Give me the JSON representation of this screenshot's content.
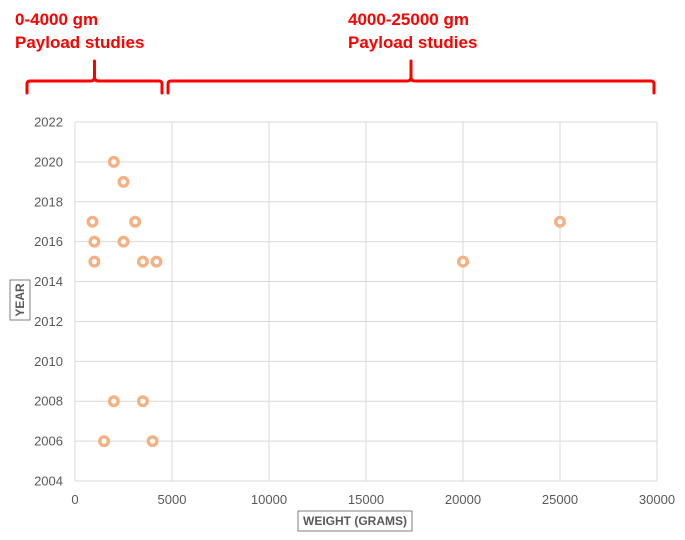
{
  "chart_data": {
    "type": "scatter",
    "title": "",
    "xlabel": "WEIGHT (GRAMS)",
    "ylabel": "YEAR",
    "xlim": [
      0,
      30000
    ],
    "ylim": [
      2004,
      2022
    ],
    "xticks": [
      0,
      5000,
      10000,
      15000,
      20000,
      25000,
      30000
    ],
    "yticks": [
      2004,
      2006,
      2008,
      2010,
      2012,
      2014,
      2016,
      2018,
      2020,
      2022
    ],
    "grid": true,
    "legend": "none",
    "series": [
      {
        "marker_color": "#f4b183",
        "points": [
          {
            "x": 2000,
            "y": 2020
          },
          {
            "x": 2500,
            "y": 2019
          },
          {
            "x": 900,
            "y": 2017
          },
          {
            "x": 3100,
            "y": 2017
          },
          {
            "x": 1000,
            "y": 2016
          },
          {
            "x": 2500,
            "y": 2016
          },
          {
            "x": 1000,
            "y": 2015
          },
          {
            "x": 3500,
            "y": 2015
          },
          {
            "x": 4200,
            "y": 2015
          },
          {
            "x": 2000,
            "y": 2008
          },
          {
            "x": 3500,
            "y": 2008
          },
          {
            "x": 1500,
            "y": 2006
          },
          {
            "x": 4000,
            "y": 2006
          },
          {
            "x": 20000,
            "y": 2015
          },
          {
            "x": 25000,
            "y": 2017
          }
        ]
      }
    ],
    "annotations": [
      {
        "line1": "0-4000 gm",
        "line2": "Payload studies",
        "range": [
          0,
          4000
        ]
      },
      {
        "line1": "4000-25000 gm",
        "line2": "Payload studies",
        "range": [
          4000,
          25000
        ]
      }
    ],
    "annotation_color": "#ff0000"
  }
}
